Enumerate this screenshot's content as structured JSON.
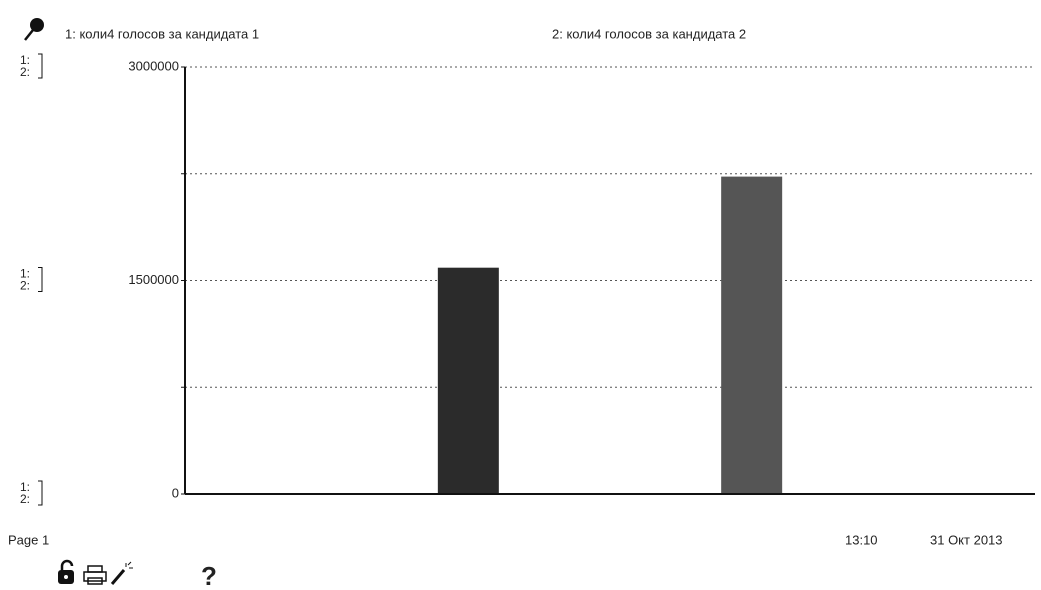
{
  "chart_data": {
    "type": "bar",
    "series": [
      {
        "name": "1: коли4 голосов за кандидата 1",
        "color": "#2b2b2b",
        "values": [
          1590000
        ]
      },
      {
        "name": "2: коли4 голосов за кандидата 2",
        "color": "#555555",
        "values": [
          2230000
        ]
      }
    ],
    "series_markers": [
      "1:",
      "2:"
    ],
    "ylim": [
      0,
      3000000
    ],
    "yticks": [
      0,
      1500000,
      3000000
    ],
    "minor_yticks": [
      750000,
      2250000
    ],
    "grid": true
  },
  "footer": {
    "page": "Page 1",
    "time": "13:10",
    "date": "31 Окт 2013",
    "help": "?"
  }
}
